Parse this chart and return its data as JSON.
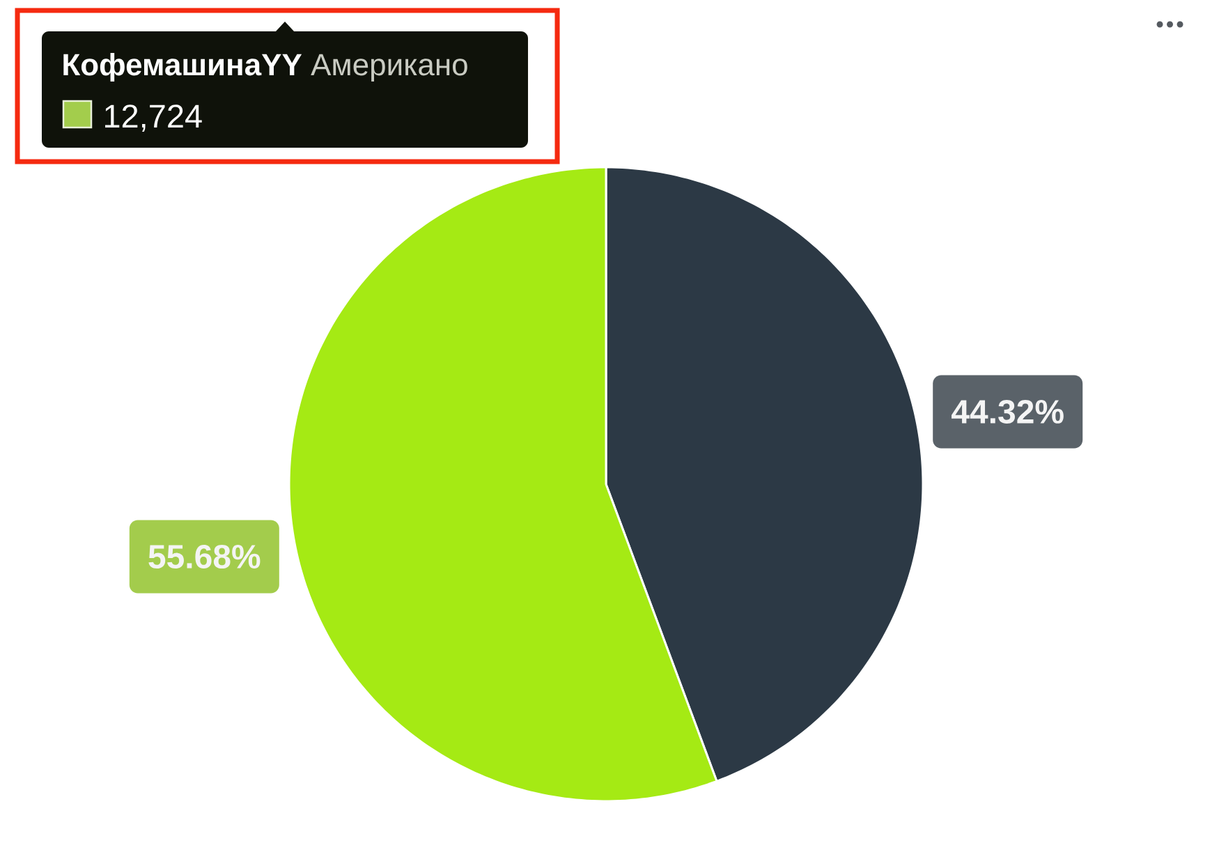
{
  "chart_data": {
    "type": "pie",
    "categories": [
      null,
      null
    ],
    "values": [
      44.32,
      55.68
    ],
    "colors": [
      "#2c3945",
      "#a5ea14"
    ],
    "value_labels": [
      "44.32%",
      "55.68%"
    ],
    "annotations": [
      "КофемашинаYY",
      "Американо",
      "12,724"
    ]
  }
}
